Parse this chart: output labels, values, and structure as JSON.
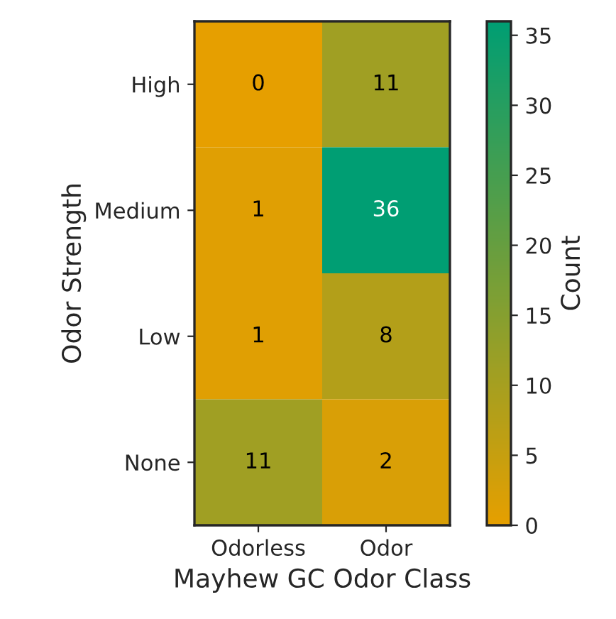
{
  "chart_data": {
    "type": "heatmap",
    "xlabel": "Mayhew GC Odor Class",
    "ylabel": "Odor Strength",
    "clabel": "Count",
    "categories": [
      "Odorless",
      "Odor"
    ],
    "y_categories": [
      "High",
      "Medium",
      "Low",
      "None"
    ],
    "cells": [
      [
        0,
        11
      ],
      [
        1,
        36
      ],
      [
        1,
        8
      ],
      [
        11,
        2
      ]
    ],
    "clim": [
      0,
      36
    ],
    "cticks": [
      0,
      5,
      10,
      15,
      20,
      25,
      30,
      35
    ],
    "data_labels": true
  }
}
